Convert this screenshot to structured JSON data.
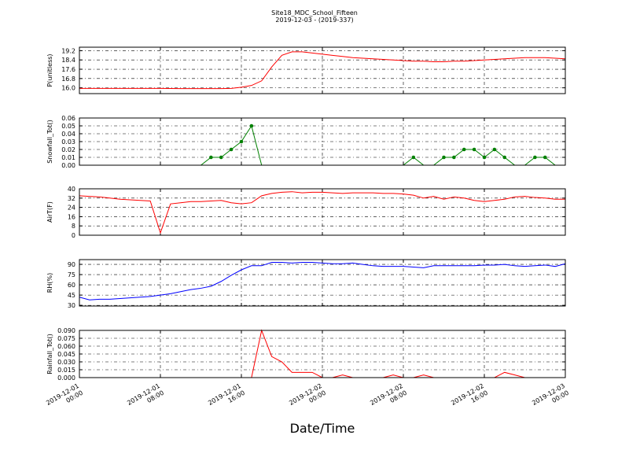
{
  "chart_data": [
    {
      "type": "line",
      "title": "Site18_MDC_School_Fifteen",
      "subtitle": "2019-12-03 - (2019-337)",
      "ylabel": "P(unitless)",
      "color": "#ff0000",
      "grid": true,
      "x": [
        "2019-12-01 00:00",
        "2019-12-01 01:00",
        "2019-12-01 02:00",
        "2019-12-01 03:00",
        "2019-12-01 04:00",
        "2019-12-01 05:00",
        "2019-12-01 06:00",
        "2019-12-01 07:00",
        "2019-12-01 08:00",
        "2019-12-01 09:00",
        "2019-12-01 10:00",
        "2019-12-01 11:00",
        "2019-12-01 12:00",
        "2019-12-01 13:00",
        "2019-12-01 14:00",
        "2019-12-01 15:00",
        "2019-12-01 16:00",
        "2019-12-01 17:00",
        "2019-12-01 18:00",
        "2019-12-01 19:00",
        "2019-12-01 20:00",
        "2019-12-01 21:00",
        "2019-12-01 22:00",
        "2019-12-01 23:00",
        "2019-12-02 00:00",
        "2019-12-02 01:00",
        "2019-12-02 02:00",
        "2019-12-02 03:00",
        "2019-12-02 04:00",
        "2019-12-02 05:00",
        "2019-12-02 06:00",
        "2019-12-02 07:00",
        "2019-12-02 08:00",
        "2019-12-02 09:00",
        "2019-12-02 10:00",
        "2019-12-02 11:00",
        "2019-12-02 12:00",
        "2019-12-02 13:00",
        "2019-12-02 14:00",
        "2019-12-02 15:00",
        "2019-12-02 16:00",
        "2019-12-02 17:00",
        "2019-12-02 18:00",
        "2019-12-02 19:00",
        "2019-12-02 20:00",
        "2019-12-02 21:00",
        "2019-12-02 22:00",
        "2019-12-02 23:00",
        "2019-12-03 00:00"
      ],
      "values": [
        15.95,
        15.95,
        15.95,
        15.95,
        15.95,
        15.95,
        15.95,
        15.95,
        15.95,
        15.94,
        15.93,
        15.93,
        15.93,
        15.93,
        15.93,
        15.95,
        16.05,
        16.2,
        16.6,
        17.8,
        18.8,
        19.1,
        19.1,
        19.0,
        18.9,
        18.8,
        18.7,
        18.6,
        18.55,
        18.5,
        18.45,
        18.4,
        18.35,
        18.3,
        18.3,
        18.25,
        18.25,
        18.3,
        18.3,
        18.35,
        18.4,
        18.45,
        18.5,
        18.55,
        18.6,
        18.6,
        18.6,
        18.55,
        18.5
      ],
      "ylim": [
        15.5,
        19.5
      ],
      "yticks": [
        {
          "value": 16.0,
          "label": "16.0"
        },
        {
          "value": 16.8,
          "label": "16.8"
        },
        {
          "value": 17.6,
          "label": "17.6"
        },
        {
          "value": 18.4,
          "label": "18.4"
        },
        {
          "value": 19.2,
          "label": "19.2"
        }
      ]
    },
    {
      "type": "line",
      "ylabel": "Snowfall_Tot()",
      "color": "#008000",
      "markers": true,
      "grid": true,
      "x": [
        "2019-12-01 00:00",
        "2019-12-01 01:00",
        "2019-12-01 02:00",
        "2019-12-01 03:00",
        "2019-12-01 04:00",
        "2019-12-01 05:00",
        "2019-12-01 06:00",
        "2019-12-01 07:00",
        "2019-12-01 08:00",
        "2019-12-01 09:00",
        "2019-12-01 10:00",
        "2019-12-01 11:00",
        "2019-12-01 12:00",
        "2019-12-01 13:00",
        "2019-12-01 14:00",
        "2019-12-01 15:00",
        "2019-12-01 16:00",
        "2019-12-01 17:00",
        "2019-12-01 18:00",
        "2019-12-01 19:00",
        "2019-12-01 20:00",
        "2019-12-01 21:00",
        "2019-12-01 22:00",
        "2019-12-01 23:00",
        "2019-12-02 00:00",
        "2019-12-02 01:00",
        "2019-12-02 02:00",
        "2019-12-02 03:00",
        "2019-12-02 04:00",
        "2019-12-02 05:00",
        "2019-12-02 06:00",
        "2019-12-02 07:00",
        "2019-12-02 08:00",
        "2019-12-02 09:00",
        "2019-12-02 10:00",
        "2019-12-02 11:00",
        "2019-12-02 12:00",
        "2019-12-02 13:00",
        "2019-12-02 14:00",
        "2019-12-02 15:00",
        "2019-12-02 16:00",
        "2019-12-02 17:00",
        "2019-12-02 18:00",
        "2019-12-02 19:00",
        "2019-12-02 20:00",
        "2019-12-02 21:00",
        "2019-12-02 22:00",
        "2019-12-02 23:00",
        "2019-12-03 00:00"
      ],
      "values": [
        0,
        0,
        0,
        0,
        0,
        0,
        0,
        0,
        0,
        0,
        0,
        0,
        0,
        0.01,
        0.01,
        0.02,
        0.03,
        0.05,
        0,
        0,
        0,
        0,
        0,
        0,
        0,
        0,
        0,
        0,
        0,
        0,
        0,
        0,
        0,
        0.01,
        0,
        0,
        0.01,
        0.01,
        0.02,
        0.02,
        0.01,
        0.02,
        0.01,
        0,
        0,
        0.01,
        0.01,
        0,
        0
      ],
      "ylim": [
        0,
        0.06
      ],
      "yticks": [
        {
          "value": 0,
          "label": "0.00"
        },
        {
          "value": 0.01,
          "label": "0.01"
        },
        {
          "value": 0.02,
          "label": "0.02"
        },
        {
          "value": 0.03,
          "label": "0.03"
        },
        {
          "value": 0.04,
          "label": "0.04"
        },
        {
          "value": 0.05,
          "label": "0.05"
        },
        {
          "value": 0.06,
          "label": "0.06"
        }
      ]
    },
    {
      "type": "line",
      "ylabel": "AirT(F)",
      "color": "#ff0000",
      "grid": true,
      "x": [
        "2019-12-01 00:00",
        "2019-12-01 01:00",
        "2019-12-01 02:00",
        "2019-12-01 03:00",
        "2019-12-01 04:00",
        "2019-12-01 05:00",
        "2019-12-01 06:00",
        "2019-12-01 07:00",
        "2019-12-01 08:00",
        "2019-12-01 09:00",
        "2019-12-01 10:00",
        "2019-12-01 11:00",
        "2019-12-01 12:00",
        "2019-12-01 13:00",
        "2019-12-01 14:00",
        "2019-12-01 15:00",
        "2019-12-01 16:00",
        "2019-12-01 17:00",
        "2019-12-01 18:00",
        "2019-12-01 19:00",
        "2019-12-01 20:00",
        "2019-12-01 21:00",
        "2019-12-01 22:00",
        "2019-12-01 23:00",
        "2019-12-02 00:00",
        "2019-12-02 01:00",
        "2019-12-02 02:00",
        "2019-12-02 03:00",
        "2019-12-02 04:00",
        "2019-12-02 05:00",
        "2019-12-02 06:00",
        "2019-12-02 07:00",
        "2019-12-02 08:00",
        "2019-12-02 09:00",
        "2019-12-02 10:00",
        "2019-12-02 11:00",
        "2019-12-02 12:00",
        "2019-12-02 13:00",
        "2019-12-02 14:00",
        "2019-12-02 15:00",
        "2019-12-02 16:00",
        "2019-12-02 17:00",
        "2019-12-02 18:00",
        "2019-12-02 19:00",
        "2019-12-02 20:00",
        "2019-12-02 21:00",
        "2019-12-02 22:00",
        "2019-12-02 23:00",
        "2019-12-03 00:00"
      ],
      "values": [
        34,
        33.5,
        33,
        32,
        31,
        30.5,
        30,
        29.5,
        2,
        27,
        28,
        29,
        29,
        29.5,
        30,
        28,
        27,
        28,
        34,
        36,
        37,
        37.5,
        36.5,
        37,
        37,
        36.5,
        36,
        36.5,
        36.5,
        36.5,
        36,
        36,
        35.5,
        34.5,
        32,
        33.5,
        31,
        33,
        32,
        30,
        29,
        30,
        31,
        33,
        33.5,
        32.5,
        32,
        31,
        31
      ],
      "ylim": [
        0,
        40
      ],
      "yticks": [
        0,
        8,
        16,
        24,
        32,
        40
      ]
    },
    {
      "type": "line",
      "ylabel": "RH(%)",
      "color": "#0000ff",
      "grid": true,
      "x": [
        "2019-12-01 00:00",
        "2019-12-01 01:00",
        "2019-12-01 02:00",
        "2019-12-01 03:00",
        "2019-12-01 04:00",
        "2019-12-01 05:00",
        "2019-12-01 06:00",
        "2019-12-01 07:00",
        "2019-12-01 08:00",
        "2019-12-01 09:00",
        "2019-12-01 10:00",
        "2019-12-01 11:00",
        "2019-12-01 12:00",
        "2019-12-01 13:00",
        "2019-12-01 14:00",
        "2019-12-01 15:00",
        "2019-12-01 16:00",
        "2019-12-01 17:00",
        "2019-12-01 18:00",
        "2019-12-01 19:00",
        "2019-12-01 20:00",
        "2019-12-01 21:00",
        "2019-12-01 22:00",
        "2019-12-01 23:00",
        "2019-12-02 00:00",
        "2019-12-02 01:00",
        "2019-12-02 02:00",
        "2019-12-02 03:00",
        "2019-12-02 04:00",
        "2019-12-02 05:00",
        "2019-12-02 06:00",
        "2019-12-02 07:00",
        "2019-12-02 08:00",
        "2019-12-02 09:00",
        "2019-12-02 10:00",
        "2019-12-02 11:00",
        "2019-12-02 12:00",
        "2019-12-02 13:00",
        "2019-12-02 14:00",
        "2019-12-02 15:00",
        "2019-12-02 16:00",
        "2019-12-02 17:00",
        "2019-12-02 18:00",
        "2019-12-02 19:00",
        "2019-12-02 20:00",
        "2019-12-02 21:00",
        "2019-12-02 22:00",
        "2019-12-02 23:00",
        "2019-12-03 00:00"
      ],
      "values": [
        42,
        38,
        39,
        39,
        40,
        41,
        42,
        43,
        45,
        47,
        50,
        53,
        55,
        58,
        65,
        74,
        82,
        88,
        88,
        93,
        93,
        92,
        93,
        93,
        92,
        91,
        91,
        92,
        90,
        88,
        87,
        87,
        87,
        86,
        85,
        88,
        88,
        88,
        88,
        88,
        89,
        89,
        90,
        88,
        87,
        88,
        89,
        87,
        91
      ],
      "ylim": [
        29,
        97
      ],
      "yticks": [
        30,
        45,
        60,
        75,
        90
      ]
    },
    {
      "type": "line",
      "ylabel": "Rainfall_Tot()",
      "xlabel": "Date/Time",
      "color": "#ff0000",
      "grid": true,
      "x": [
        "2019-12-01 00:00",
        "2019-12-01 01:00",
        "2019-12-01 02:00",
        "2019-12-01 03:00",
        "2019-12-01 04:00",
        "2019-12-01 05:00",
        "2019-12-01 06:00",
        "2019-12-01 07:00",
        "2019-12-01 08:00",
        "2019-12-01 09:00",
        "2019-12-01 10:00",
        "2019-12-01 11:00",
        "2019-12-01 12:00",
        "2019-12-01 13:00",
        "2019-12-01 14:00",
        "2019-12-01 15:00",
        "2019-12-01 16:00",
        "2019-12-01 17:00",
        "2019-12-01 18:00",
        "2019-12-01 19:00",
        "2019-12-01 20:00",
        "2019-12-01 21:00",
        "2019-12-01 22:00",
        "2019-12-01 23:00",
        "2019-12-02 00:00",
        "2019-12-02 01:00",
        "2019-12-02 02:00",
        "2019-12-02 03:00",
        "2019-12-02 04:00",
        "2019-12-02 05:00",
        "2019-12-02 06:00",
        "2019-12-02 07:00",
        "2019-12-02 08:00",
        "2019-12-02 09:00",
        "2019-12-02 10:00",
        "2019-12-02 11:00",
        "2019-12-02 12:00",
        "2019-12-02 13:00",
        "2019-12-02 14:00",
        "2019-12-02 15:00",
        "2019-12-02 16:00",
        "2019-12-02 17:00",
        "2019-12-02 18:00",
        "2019-12-02 19:00",
        "2019-12-02 20:00",
        "2019-12-02 21:00",
        "2019-12-02 22:00",
        "2019-12-02 23:00",
        "2019-12-03 00:00"
      ],
      "values": [
        0,
        0,
        0,
        0,
        0,
        0,
        0,
        0,
        0,
        0,
        0,
        0,
        0,
        0,
        0,
        0,
        0,
        0,
        0.09,
        0.04,
        0.03,
        0.01,
        0.01,
        0.01,
        0,
        0,
        0.005,
        0,
        0,
        0,
        0,
        0.005,
        0,
        0,
        0.005,
        0,
        0,
        0,
        0,
        0,
        0,
        0,
        0.01,
        0.005,
        0,
        0,
        0,
        0,
        0
      ],
      "ylim": [
        0,
        0.09
      ],
      "yticks": [
        {
          "value": 0,
          "label": "0.000"
        },
        {
          "value": 0.015,
          "label": "0.015"
        },
        {
          "value": 0.03,
          "label": "0.030"
        },
        {
          "value": 0.045,
          "label": "0.045"
        },
        {
          "value": 0.06,
          "label": "0.060"
        },
        {
          "value": 0.075,
          "label": "0.075"
        },
        {
          "value": 0.09,
          "label": "0.090"
        }
      ],
      "xlim": [
        "2019-12-01 00:00",
        "2019-12-03 00:00"
      ],
      "xticks": [
        "2019-12-01 00:00",
        "2019-12-01 08:00",
        "2019-12-01 16:00",
        "2019-12-02 00:00",
        "2019-12-02 08:00",
        "2019-12-02 16:00",
        "2019-12-03 00:00"
      ]
    }
  ]
}
